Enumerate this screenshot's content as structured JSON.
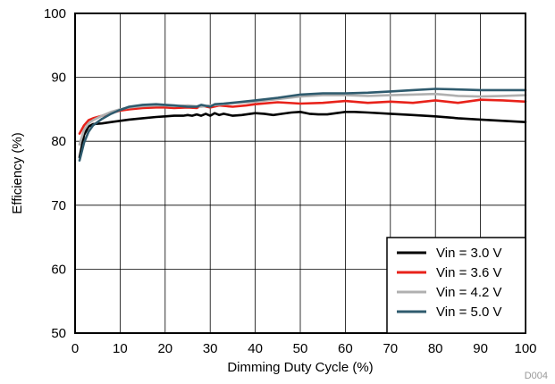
{
  "figure_id": "D004",
  "chart_data": {
    "type": "line",
    "xlabel": "Dimming Duty Cycle (%)",
    "ylabel": "Efficiency (%)",
    "xlim": [
      0,
      100
    ],
    "ylim": [
      50,
      100
    ],
    "xticks": [
      0,
      10,
      20,
      30,
      40,
      50,
      60,
      70,
      80,
      90,
      100
    ],
    "yticks": [
      50,
      60,
      70,
      80,
      90,
      100
    ],
    "xtick_labels": [
      "0",
      "10",
      "20",
      "30",
      "40",
      "50",
      "60",
      "70",
      "80",
      "90",
      "100"
    ],
    "ytick_labels": [
      "50",
      "60",
      "70",
      "80",
      "90",
      "100"
    ],
    "grid": true,
    "legend_position": "bottom-right",
    "series": [
      {
        "name": "Vin = 3.0 V",
        "color": "#000000",
        "x": [
          1,
          2,
          3,
          4,
          6,
          8,
          10,
          12,
          15,
          18,
          20,
          22,
          24,
          25,
          26,
          27,
          28,
          29,
          30,
          31,
          32,
          33,
          35,
          37,
          40,
          42,
          44,
          46,
          48,
          50,
          52,
          54,
          56,
          58,
          60,
          62,
          65,
          70,
          75,
          80,
          85,
          90,
          95,
          100
        ],
        "y": [
          77.5,
          81.0,
          82.3,
          82.7,
          82.8,
          83.0,
          83.2,
          83.4,
          83.6,
          83.8,
          83.9,
          84.0,
          84.0,
          84.1,
          84.0,
          84.2,
          84.0,
          84.3,
          84.0,
          84.4,
          84.1,
          84.3,
          84.0,
          84.1,
          84.4,
          84.3,
          84.1,
          84.3,
          84.5,
          84.6,
          84.3,
          84.2,
          84.2,
          84.4,
          84.6,
          84.6,
          84.5,
          84.3,
          84.1,
          83.9,
          83.6,
          83.4,
          83.2,
          83.0
        ]
      },
      {
        "name": "Vin = 3.6 V",
        "color": "#e8221a",
        "x": [
          1,
          2,
          3,
          4,
          6,
          8,
          10,
          12,
          15,
          18,
          20,
          22,
          25,
          27,
          28,
          30,
          32,
          35,
          38,
          40,
          45,
          50,
          55,
          60,
          65,
          70,
          75,
          80,
          85,
          90,
          95,
          100
        ],
        "y": [
          81.2,
          82.5,
          83.3,
          83.6,
          84.0,
          84.4,
          84.8,
          85.0,
          85.2,
          85.3,
          85.3,
          85.2,
          85.3,
          85.2,
          85.6,
          85.3,
          85.6,
          85.4,
          85.6,
          85.8,
          86.1,
          85.9,
          86.0,
          86.3,
          86.0,
          86.2,
          86.0,
          86.4,
          86.0,
          86.5,
          86.4,
          86.2
        ]
      },
      {
        "name": "Vin = 4.2 V",
        "color": "#b0b0b0",
        "x": [
          1,
          2,
          3,
          4,
          6,
          8,
          10,
          12,
          15,
          18,
          20,
          22,
          25,
          28,
          30,
          33,
          36,
          40,
          45,
          50,
          55,
          60,
          65,
          70,
          75,
          80,
          85,
          90,
          95,
          100
        ],
        "y": [
          79.5,
          81.8,
          82.8,
          83.3,
          84.0,
          84.6,
          85.0,
          85.3,
          85.5,
          85.6,
          85.6,
          85.5,
          85.6,
          85.4,
          85.6,
          85.8,
          86.0,
          86.2,
          86.6,
          87.0,
          87.2,
          87.2,
          87.1,
          87.2,
          87.3,
          87.4,
          87.1,
          87.0,
          87.1,
          87.2
        ]
      },
      {
        "name": "Vin = 5.0 V",
        "color": "#2f5b6e",
        "x": [
          1,
          2,
          3,
          4,
          6,
          8,
          10,
          12,
          15,
          18,
          20,
          22,
          25,
          27,
          28,
          30,
          31,
          33,
          36,
          40,
          45,
          50,
          55,
          60,
          65,
          70,
          75,
          80,
          85,
          90,
          95,
          100
        ],
        "y": [
          77.0,
          79.8,
          81.5,
          82.5,
          83.5,
          84.3,
          84.9,
          85.4,
          85.7,
          85.8,
          85.7,
          85.6,
          85.4,
          85.4,
          85.7,
          85.4,
          85.8,
          85.9,
          86.1,
          86.4,
          86.8,
          87.3,
          87.5,
          87.5,
          87.6,
          87.8,
          88.0,
          88.2,
          88.1,
          88.0,
          88.0,
          88.0
        ]
      }
    ]
  }
}
